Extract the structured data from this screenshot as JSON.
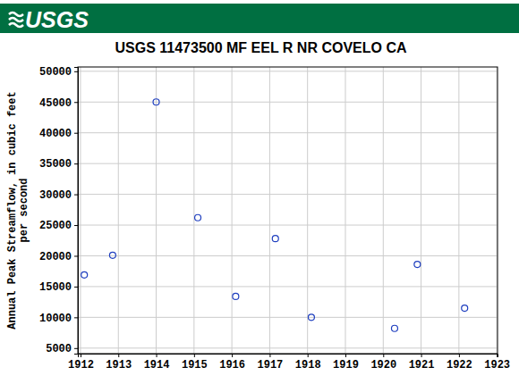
{
  "header": {
    "logo": "USGS"
  },
  "chart_data": {
    "type": "scatter",
    "title": "USGS 11473500 MF EEL R NR COVELO CA",
    "ylabel": [
      "Annual Peak Streamflow, in cubic feet",
      "per second"
    ],
    "x": [
      1912.1,
      1912.85,
      1914.0,
      1915.1,
      1916.1,
      1917.15,
      1918.1,
      1920.3,
      1920.9,
      1922.15
    ],
    "values": [
      16900,
      20100,
      45000,
      26200,
      13400,
      22800,
      10000,
      8200,
      18600,
      11500
    ],
    "color": "#1f3fbf",
    "marker": "circle-open",
    "xlim": [
      1911.93,
      1923.02
    ],
    "xticks": [
      1912,
      1913,
      1914,
      1915,
      1916,
      1917,
      1918,
      1919,
      1920,
      1921,
      1922,
      1923
    ],
    "ylim": [
      4100,
      50700
    ],
    "yticks": [
      5000,
      10000,
      15000,
      20000,
      25000,
      30000,
      35000,
      40000,
      45000,
      50000
    ],
    "grid": true
  }
}
